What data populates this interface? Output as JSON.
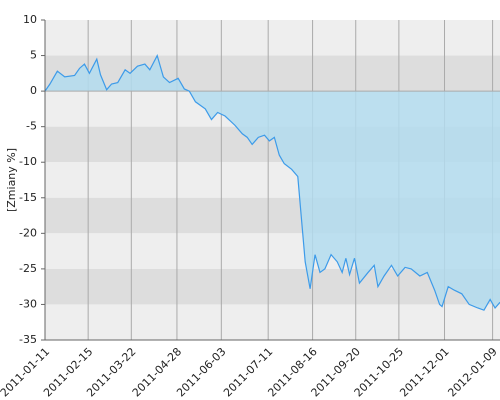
{
  "chart_data": {
    "type": "area",
    "ylabel": "[Zmiany %]",
    "x": [
      "2011-01-11",
      "2011-01-15",
      "2011-01-21",
      "2011-01-27",
      "2011-02-04",
      "2011-02-08",
      "2011-02-12",
      "2011-02-16",
      "2011-02-22",
      "2011-02-25",
      "2011-03-02",
      "2011-03-06",
      "2011-03-11",
      "2011-03-17",
      "2011-03-21",
      "2011-03-27",
      "2011-04-02",
      "2011-04-06",
      "2011-04-12",
      "2011-04-17",
      "2011-04-22",
      "2011-04-29",
      "2011-05-04",
      "2011-05-08",
      "2011-05-13",
      "2011-05-21",
      "2011-05-26",
      "2011-05-31",
      "2011-06-06",
      "2011-06-14",
      "2011-06-20",
      "2011-06-24",
      "2011-06-28",
      "2011-07-03",
      "2011-07-08",
      "2011-07-12",
      "2011-07-16",
      "2011-07-20",
      "2011-07-24",
      "2011-07-30",
      "2011-08-04",
      "2011-08-08",
      "2011-08-10",
      "2011-08-14",
      "2011-08-18",
      "2011-08-22",
      "2011-08-26",
      "2011-08-31",
      "2011-09-05",
      "2011-09-09",
      "2011-09-12",
      "2011-09-15",
      "2011-09-19",
      "2011-09-23",
      "2011-09-30",
      "2011-10-05",
      "2011-10-08",
      "2011-10-13",
      "2011-10-19",
      "2011-10-24",
      "2011-10-30",
      "2011-11-04",
      "2011-11-11",
      "2011-11-17",
      "2011-11-23",
      "2011-11-27",
      "2011-11-29",
      "2011-12-04",
      "2011-12-09",
      "2011-12-15",
      "2011-12-21",
      "2011-12-28",
      "2012-01-02",
      "2012-01-07",
      "2012-01-11",
      "2012-01-15"
    ],
    "series": [
      {
        "color": "#3d9be9",
        "fill": "#b3dcef",
        "values": [
          0,
          1.0,
          2.8,
          2.0,
          2.2,
          3.2,
          3.8,
          2.5,
          4.5,
          2.3,
          0.2,
          1.0,
          1.2,
          3.0,
          2.5,
          3.5,
          3.8,
          3.0,
          5.0,
          2.0,
          1.2,
          1.8,
          0.3,
          0.0,
          -1.5,
          -2.5,
          -4.0,
          -3.0,
          -3.5,
          -4.8,
          -6.0,
          -6.5,
          -7.5,
          -6.5,
          -6.2,
          -7.0,
          -6.5,
          -9.0,
          -10.2,
          -11.0,
          -12.0,
          -20.0,
          -24.0,
          -27.8,
          -23.0,
          -25.5,
          -25.0,
          -23.0,
          -24.0,
          -25.5,
          -23.5,
          -25.8,
          -23.5,
          -27.0,
          -25.5,
          -24.5,
          -27.5,
          -26.0,
          -24.5,
          -26.0,
          -24.8,
          -25.0,
          -26.0,
          -25.5,
          -28.0,
          -30.0,
          -30.3,
          -27.5,
          -28.0,
          -28.5,
          -30.0,
          -30.5,
          -30.8,
          -29.3,
          -30.5,
          -29.7
        ]
      }
    ],
    "xlim": [
      "2011-01-11",
      "2012-01-15"
    ],
    "xticks": [
      "2011-01-11",
      "2011-02-15",
      "2011-03-22",
      "2011-04-28",
      "2011-06-03",
      "2011-07-11",
      "2011-08-16",
      "2011-09-20",
      "2011-10-25",
      "2011-12-01",
      "2012-01-09"
    ],
    "ylim": [
      -35,
      10
    ],
    "yticks": [
      10,
      5,
      0,
      -5,
      -10,
      -15,
      -20,
      -25,
      -30,
      -35
    ],
    "grid": true,
    "band_colors": [
      "#eeeeee",
      "#dddddd"
    ]
  }
}
